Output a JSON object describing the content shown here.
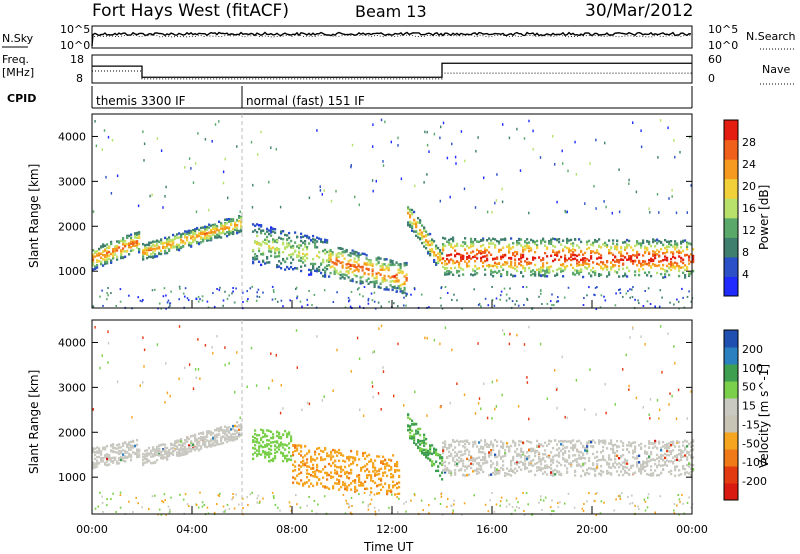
{
  "header": {
    "station": "Fort Hays West (fitACF)",
    "beam": "Beam 13",
    "date": "30/Mar/2012"
  },
  "labels": {
    "nsky": "N.Sky",
    "nsearch": "N.Search",
    "freq_top": "Freq.",
    "freq_unit": "[MHz]",
    "nave": "Nave",
    "cpid": "CPID",
    "nsky_tick_hi": "10^5",
    "nsky_tick_lo": "10^0",
    "nsearch_tick_hi": "10^5",
    "nsearch_tick_lo": "10^0",
    "freq_tick_hi": "18",
    "freq_tick_lo": "8",
    "nave_tick_hi": "60",
    "nave_tick_lo": "0",
    "xlabel": "Time UT"
  },
  "cpid_segments": [
    {
      "label": "themis 3300 IF",
      "start_hr": 0,
      "end_hr": 6
    },
    {
      "label": "normal (fast) 151 IF",
      "start_hr": 6,
      "end_hr": 24
    }
  ],
  "colors": {
    "power": [
      "#1f2bff",
      "#2b50c8",
      "#3f7f6e",
      "#5aa86a",
      "#b7e16b",
      "#f2d03a",
      "#f59a1f",
      "#f0601a",
      "#e51c10"
    ],
    "velocity": [
      "#1f4fb0",
      "#2b80c0",
      "#3f9f50",
      "#7ad04a",
      "#c9c9c1",
      "#c7c3b5",
      "#f5a51e",
      "#f07a18",
      "#e33a12",
      "#d81a10"
    ]
  },
  "chart_data": [
    {
      "type": "heatmap",
      "name": "power",
      "xlabel": "Time UT",
      "ylabel": "Slant Range [km]",
      "x_ticks": [
        "00:00",
        "04:00",
        "08:00",
        "12:00",
        "16:00",
        "20:00",
        "00:00"
      ],
      "xlim_hr": [
        0,
        24
      ],
      "ylim_km": [
        180,
        4500
      ],
      "y_ticks": [
        1000,
        2000,
        3000,
        4000
      ],
      "colorbar": {
        "label": "Power [dB]",
        "ticks": [
          4,
          8,
          12,
          16,
          20,
          24,
          28
        ],
        "range": [
          0,
          30
        ]
      },
      "bands": [
        {
          "t0": 0.0,
          "t1": 1.9,
          "center_km": [
            1300,
            1700
          ],
          "width_km": 480,
          "peak_db": 24
        },
        {
          "t0": 2.0,
          "t1": 6.0,
          "center_km": [
            1450,
            2100
          ],
          "width_km": 380,
          "peak_db": 22
        },
        {
          "t0": 6.4,
          "t1": 9.5,
          "center_km": [
            1650,
            1300
          ],
          "width_km": 900,
          "peak_db": 16
        },
        {
          "t0": 9.5,
          "t1": 12.6,
          "center_km": [
            1250,
            850
          ],
          "width_km": 700,
          "peak_db": 24
        },
        {
          "t0": 12.6,
          "t1": 14.0,
          "center_km": [
            2300,
            1200
          ],
          "width_km": 500,
          "peak_db": 22
        },
        {
          "t0": 14.0,
          "t1": 24.0,
          "center_km": [
            1350,
            1300
          ],
          "width_km": 850,
          "peak_db": 28
        }
      ]
    },
    {
      "type": "heatmap",
      "name": "velocity",
      "xlabel": "Time UT",
      "ylabel": "Slant Range [km]",
      "x_ticks": [
        "00:00",
        "04:00",
        "08:00",
        "12:00",
        "16:00",
        "20:00",
        "00:00"
      ],
      "xlim_hr": [
        0,
        24
      ],
      "ylim_km": [
        180,
        4500
      ],
      "y_ticks": [
        1000,
        2000,
        3000,
        4000
      ],
      "colorbar": {
        "label": "Velocity [m s^-1]",
        "ticks": [
          200,
          100,
          50,
          15,
          -15,
          -50,
          -100,
          -200
        ]
      },
      "bands": [
        {
          "t0": 0.0,
          "t1": 1.9,
          "center_km": [
            1450,
            1650
          ],
          "width_km": 450,
          "vel": 0
        },
        {
          "t0": 2.0,
          "t1": 6.0,
          "center_km": [
            1450,
            2100
          ],
          "width_km": 380,
          "vel": 0
        },
        {
          "t0": 6.4,
          "t1": 8.0,
          "center_km": [
            1750,
            1700
          ],
          "width_km": 700,
          "vel": 60
        },
        {
          "t0": 8.0,
          "t1": 12.3,
          "center_km": [
            1300,
            1050
          ],
          "width_km": 900,
          "vel": -60
        },
        {
          "t0": 12.6,
          "t1": 14.0,
          "center_km": [
            2200,
            1200
          ],
          "width_km": 500,
          "vel": 40
        },
        {
          "t0": 14.0,
          "t1": 24.0,
          "center_km": [
            1450,
            1450
          ],
          "width_km": 800,
          "vel": 0
        }
      ]
    }
  ]
}
